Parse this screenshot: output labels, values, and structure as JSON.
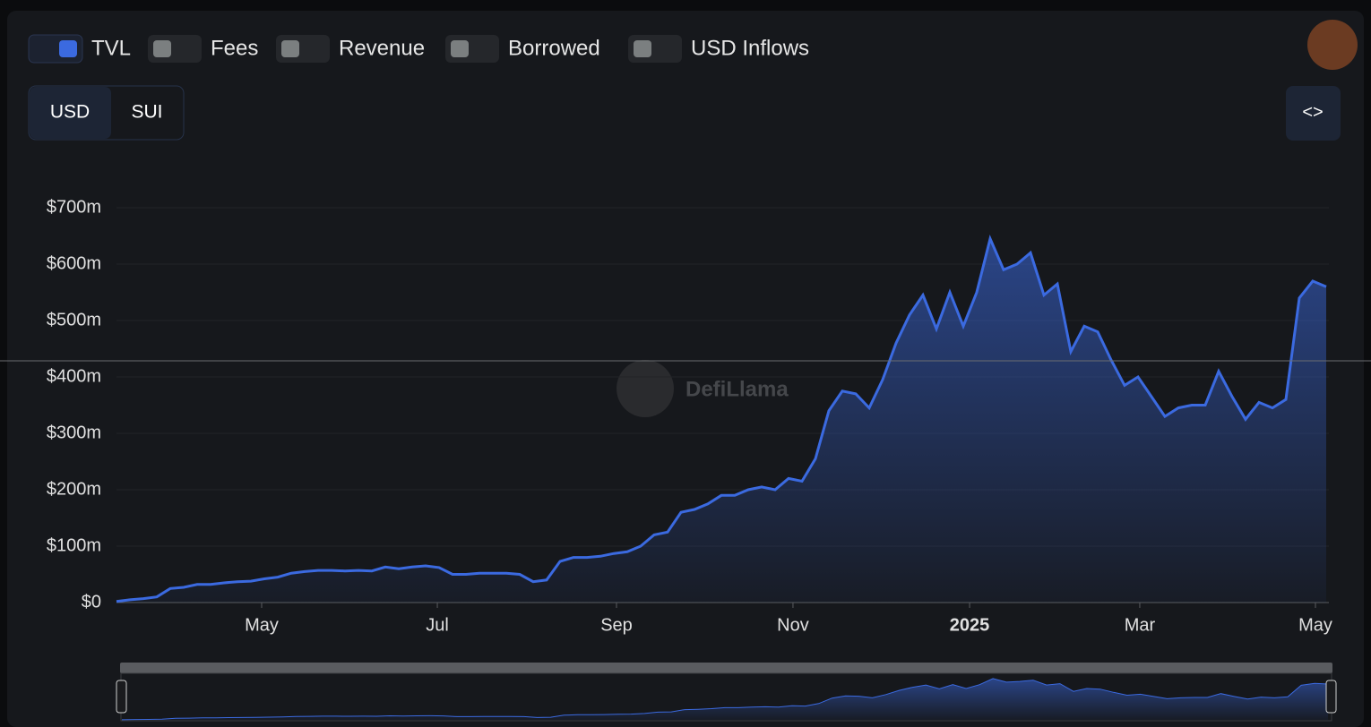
{
  "controls": {
    "toggles": [
      "Fees",
      "Revenue",
      "Borrowed",
      "USD Inflows"
    ],
    "currency": [
      "USD",
      "SUI"
    ],
    "embed": "<>"
  },
  "watermark": "DefiLlama",
  "chart_data": {
    "type": "area",
    "series": [
      {
        "name": "TVL",
        "color": "#3b6ae0",
        "values": [
          2,
          5,
          7,
          10,
          25,
          27,
          32,
          32,
          35,
          37,
          38,
          42,
          45,
          52,
          55,
          57,
          57,
          56,
          57,
          56,
          63,
          60,
          63,
          65,
          62,
          50,
          50,
          52,
          52,
          52,
          50,
          37,
          40,
          73,
          80,
          80,
          82,
          87,
          90,
          100,
          120,
          125,
          160,
          165,
          175,
          190,
          190,
          200,
          205,
          200,
          220,
          215,
          255,
          340,
          375,
          370,
          345,
          395,
          460,
          510,
          545,
          485,
          550,
          490,
          550,
          645,
          590,
          600,
          620,
          545,
          565,
          445,
          490,
          480,
          430,
          385,
          400,
          365,
          330,
          345,
          350,
          350,
          410,
          365,
          325,
          355,
          345,
          360,
          540,
          570,
          560
        ]
      }
    ],
    "xlim": [
      0,
      90.2
    ],
    "xticks": [
      {
        "value": 10.8,
        "label": "May"
      },
      {
        "value": 23.87,
        "label": "Jul"
      },
      {
        "value": 37.2,
        "label": "Sep"
      },
      {
        "value": 50.33,
        "label": "Nov"
      },
      {
        "value": 63.47,
        "label": "2025"
      },
      {
        "value": 76.13,
        "label": "Mar"
      },
      {
        "value": 89.2,
        "label": "May"
      }
    ],
    "ylim": [
      0,
      700
    ],
    "yticks": [
      {
        "value": 0,
        "label": "$0"
      },
      {
        "value": 100,
        "label": "$100m"
      },
      {
        "value": 200,
        "label": "$200m"
      },
      {
        "value": 300,
        "label": "$300m"
      },
      {
        "value": 400,
        "label": "$400m"
      },
      {
        "value": 500,
        "label": "$500m"
      },
      {
        "value": 600,
        "label": "$600m"
      },
      {
        "value": 700,
        "label": "$700m"
      }
    ],
    "grid": true
  }
}
